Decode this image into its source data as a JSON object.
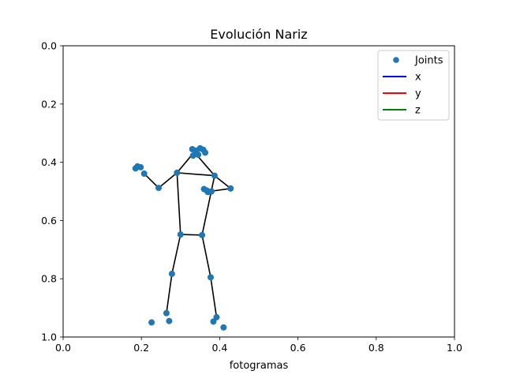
{
  "chart_data": {
    "type": "scatter",
    "title": "Evolución Nariz",
    "xlabel": "fotogramas",
    "ylabel": "",
    "xlim": [
      0,
      1
    ],
    "ylim": [
      1,
      0
    ],
    "y_axis_inverted": true,
    "grid": false,
    "legend_placement": "top-right",
    "x_ticks": [
      "0.0",
      "0.2",
      "0.4",
      "0.6",
      "0.8",
      "1.0"
    ],
    "y_ticks": [
      "0.0",
      "0.2",
      "0.4",
      "0.6",
      "0.8",
      "1.0"
    ],
    "legend": [
      {
        "label": "Joints",
        "kind": "marker",
        "color": "#1f77b4"
      },
      {
        "label": "x",
        "kind": "line",
        "color": "#0000ff"
      },
      {
        "label": "y",
        "kind": "line",
        "color": "#ff0000"
      },
      {
        "label": "z",
        "kind": "line",
        "color": "#008000"
      }
    ],
    "joints": {
      "color": "#1f77b4",
      "points": [
        {
          "x": 0.33,
          "y": 0.355
        },
        {
          "x": 0.34,
          "y": 0.36
        },
        {
          "x": 0.35,
          "y": 0.352
        },
        {
          "x": 0.358,
          "y": 0.357
        },
        {
          "x": 0.363,
          "y": 0.367
        },
        {
          "x": 0.332,
          "y": 0.377
        },
        {
          "x": 0.345,
          "y": 0.374
        },
        {
          "x": 0.19,
          "y": 0.414
        },
        {
          "x": 0.185,
          "y": 0.421
        },
        {
          "x": 0.198,
          "y": 0.417
        },
        {
          "x": 0.207,
          "y": 0.439
        },
        {
          "x": 0.291,
          "y": 0.436
        },
        {
          "x": 0.387,
          "y": 0.446
        },
        {
          "x": 0.244,
          "y": 0.488
        },
        {
          "x": 0.428,
          "y": 0.49
        },
        {
          "x": 0.36,
          "y": 0.492
        },
        {
          "x": 0.367,
          "y": 0.497
        },
        {
          "x": 0.37,
          "y": 0.502
        },
        {
          "x": 0.379,
          "y": 0.5
        },
        {
          "x": 0.3,
          "y": 0.648
        },
        {
          "x": 0.355,
          "y": 0.65
        },
        {
          "x": 0.278,
          "y": 0.783
        },
        {
          "x": 0.377,
          "y": 0.795
        },
        {
          "x": 0.264,
          "y": 0.918
        },
        {
          "x": 0.392,
          "y": 0.932
        },
        {
          "x": 0.226,
          "y": 0.95
        },
        {
          "x": 0.271,
          "y": 0.945
        },
        {
          "x": 0.384,
          "y": 0.947
        },
        {
          "x": 0.41,
          "y": 0.967
        }
      ]
    },
    "skeleton": {
      "color": "#000000",
      "segments": [
        [
          [
            0.335,
            0.365
          ],
          [
            0.291,
            0.436
          ]
        ],
        [
          [
            0.335,
            0.365
          ],
          [
            0.387,
            0.446
          ]
        ],
        [
          [
            0.291,
            0.436
          ],
          [
            0.387,
            0.446
          ]
        ],
        [
          [
            0.291,
            0.436
          ],
          [
            0.244,
            0.488
          ]
        ],
        [
          [
            0.244,
            0.488
          ],
          [
            0.207,
            0.439
          ]
        ],
        [
          [
            0.387,
            0.446
          ],
          [
            0.428,
            0.49
          ]
        ],
        [
          [
            0.428,
            0.49
          ],
          [
            0.375,
            0.5
          ]
        ],
        [
          [
            0.291,
            0.436
          ],
          [
            0.3,
            0.648
          ]
        ],
        [
          [
            0.387,
            0.446
          ],
          [
            0.355,
            0.65
          ]
        ],
        [
          [
            0.3,
            0.648
          ],
          [
            0.355,
            0.65
          ]
        ],
        [
          [
            0.3,
            0.648
          ],
          [
            0.278,
            0.783
          ]
        ],
        [
          [
            0.278,
            0.783
          ],
          [
            0.264,
            0.918
          ]
        ],
        [
          [
            0.355,
            0.65
          ],
          [
            0.377,
            0.795
          ]
        ],
        [
          [
            0.377,
            0.795
          ],
          [
            0.392,
            0.932
          ]
        ]
      ]
    }
  }
}
